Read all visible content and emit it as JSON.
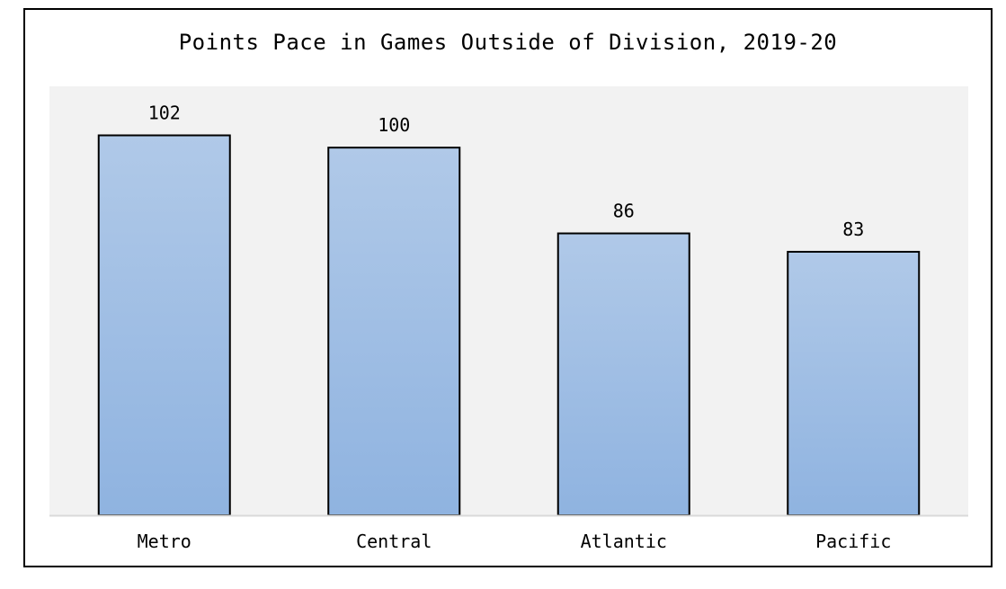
{
  "chart_data": {
    "type": "bar",
    "title": "Points Pace in Games Outside of Division, 2019-20",
    "xlabel": "",
    "ylabel": "",
    "categories": [
      "Metro",
      "Central",
      "Atlantic",
      "Pacific"
    ],
    "values": [
      102,
      100,
      86,
      83
    ],
    "data_labels": [
      "102",
      "100",
      "86",
      "83"
    ],
    "ylim": [
      40,
      110
    ],
    "grid": false,
    "legend": "none",
    "colors": {
      "bar_top": "#b0c9e8",
      "bar_bottom": "#8fb3e0",
      "bar_stroke": "#000000",
      "plot_background": "#f2f2f2",
      "axis": "#d9d9d9"
    }
  }
}
